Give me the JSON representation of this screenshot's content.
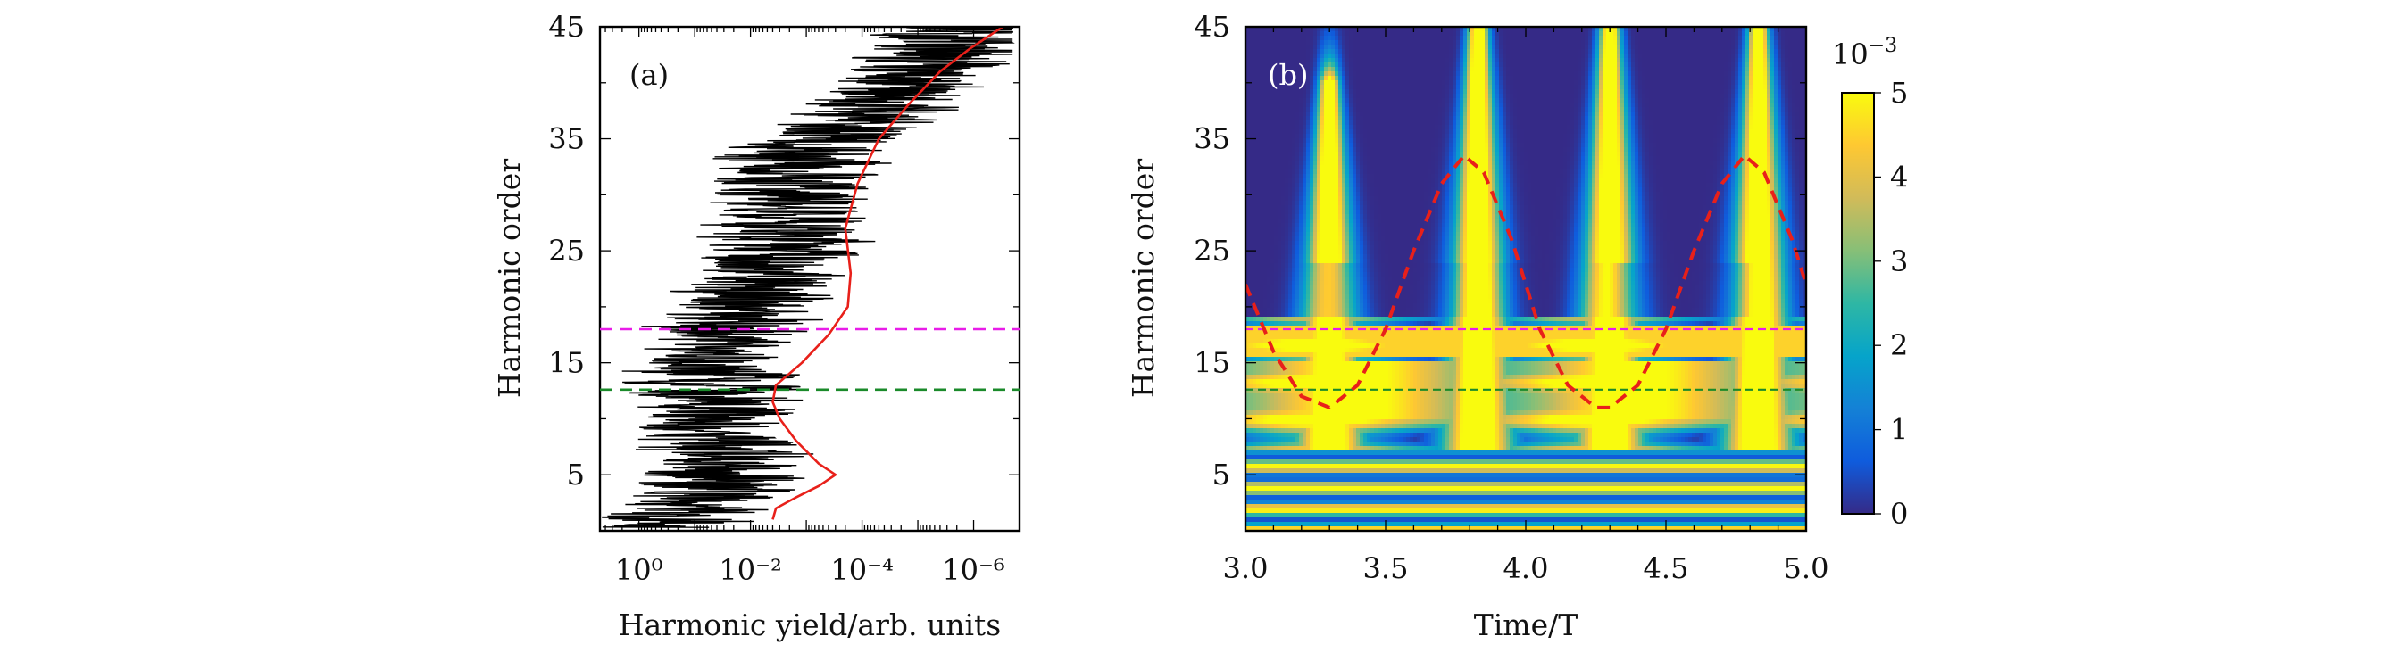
{
  "chart_data": [
    {
      "panel_label": "(a)",
      "type": "line",
      "xlabel": "Harmonic yield/arb. units",
      "ylabel": "Harmonic order",
      "x_scale": "log",
      "x_reversed": true,
      "xlim": [
        5.0,
        1.5e-07
      ],
      "ylim": [
        0,
        45
      ],
      "x_tick_labels": [
        "10⁰",
        "10⁻²",
        "10⁻⁴",
        "10⁻⁶"
      ],
      "x_tick_values": [
        1,
        0.01,
        0.0001,
        1e-06
      ],
      "y_ticks": [
        5,
        15,
        25,
        35,
        45
      ],
      "series": [
        {
          "style": "black spectrum",
          "color": "#000000",
          "envelope": {
            "orders": [
              0.5,
              3,
              6,
              9,
              12,
              15,
              18,
              22,
              26,
              30,
              34,
              36,
              40,
              45
            ],
            "yield": [
              0.3,
              0.04,
              0.02,
              0.03,
              0.03,
              0.04,
              0.02,
              0.005,
              0.002,
              0.0015,
              0.001,
              0.0001,
              1e-05,
              1e-06
            ]
          }
        },
        {
          "style": "red smoothed",
          "color": "#e8201a",
          "x": [
            0.004,
            0.0035,
            0.0015,
            0.0006,
            0.0003,
            0.0006,
            0.0015,
            0.003,
            0.004,
            0.0035,
            0.0012,
            0.0004,
            0.00018,
            0.00016,
            0.0002,
            0.00012,
            5e-05,
            1.5e-05,
            4e-06,
            1.2e-06,
            3e-07
          ],
          "y": [
            1,
            2,
            3,
            4,
            5,
            6,
            8,
            10,
            11.5,
            13,
            15,
            17.5,
            20,
            23,
            27,
            31,
            35,
            38,
            41,
            43,
            45
          ]
        }
      ],
      "reference_lines": [
        {
          "y": 18,
          "color": "#e81ce8"
        },
        {
          "y": 12.6,
          "color": "#1a8a2a"
        }
      ]
    },
    {
      "panel_label": "(b)",
      "type": "heatmap",
      "xlabel": "Time/T",
      "ylabel": "Harmonic order",
      "xlim": [
        3.0,
        5.0
      ],
      "ylim": [
        0,
        45
      ],
      "x_ticks": [
        "3.0",
        "3.5",
        "4.0",
        "4.5",
        "5.0"
      ],
      "x_tick_values": [
        3.0,
        3.5,
        4.0,
        4.5,
        5.0
      ],
      "y_ticks": [
        5,
        15,
        25,
        35,
        45
      ],
      "colorbar": {
        "exponent_label": "10",
        "exponent": "−3",
        "ticks": [
          "0",
          "1",
          "2",
          "3",
          "4",
          "5"
        ],
        "range": [
          0,
          5
        ],
        "colormap": [
          "#352a87",
          "#0f5cdd",
          "#1481d6",
          "#06a4ca",
          "#2eb7a4",
          "#87bf77",
          "#d1bb59",
          "#fec832",
          "#f9fb0e"
        ]
      },
      "emission_bursts": [
        {
          "time": 3.3,
          "peak_order": 40
        },
        {
          "time": 3.83,
          "peak_order": 45
        },
        {
          "time": 4.3,
          "peak_order": 45
        },
        {
          "time": 4.83,
          "peak_order": 45
        }
      ],
      "classical_trajectory": {
        "color": "#e8201a",
        "style": "dashed",
        "x": [
          3.0,
          3.1,
          3.2,
          3.3,
          3.4,
          3.5,
          3.6,
          3.7,
          3.78,
          3.85,
          3.95,
          4.05,
          4.15,
          4.25,
          4.3,
          4.4,
          4.5,
          4.6,
          4.7,
          4.78,
          4.85,
          4.95,
          5.0
        ],
        "y": [
          22,
          16,
          12,
          11,
          13,
          18,
          25,
          31,
          33.5,
          32,
          26,
          18,
          13,
          11,
          11,
          13,
          18,
          25,
          31,
          33.5,
          32,
          26,
          22
        ]
      },
      "reference_lines": [
        {
          "y": 18,
          "color": "#e81ce8"
        },
        {
          "y": 12.6,
          "color": "#1a8a2a"
        }
      ]
    }
  ]
}
